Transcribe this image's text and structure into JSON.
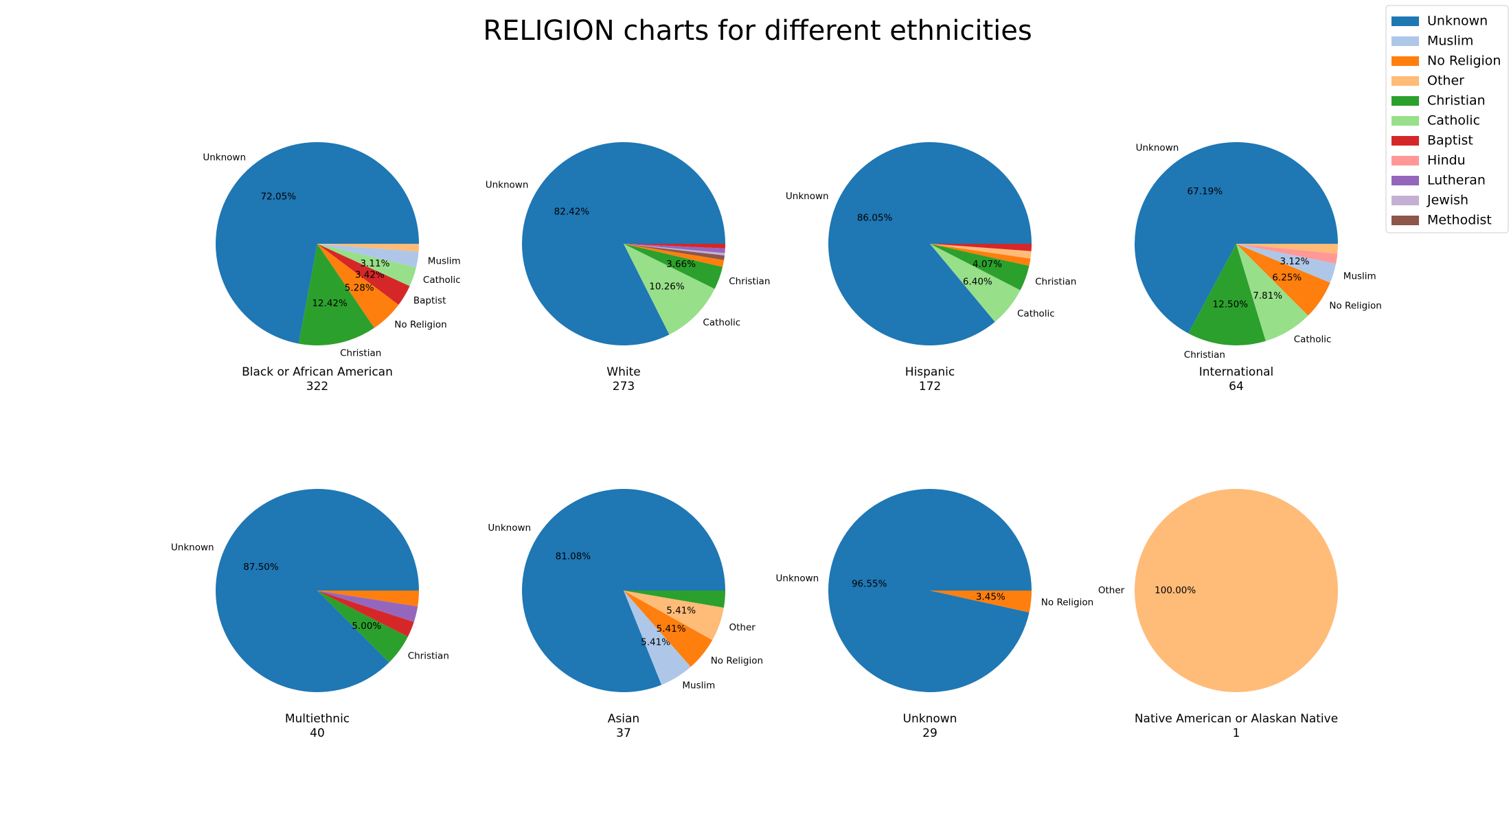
{
  "title": "RELIGION charts for different ethnicities",
  "colors": {
    "Unknown": "#1f77b4",
    "Muslim": "#aec7e8",
    "No Religion": "#ff7f0e",
    "Other": "#ffbb78",
    "Christian": "#2ca02c",
    "Catholic": "#98df8a",
    "Baptist": "#d62728",
    "Hindu": "#ff9896",
    "Lutheran": "#9467bd",
    "Jewish": "#c5b0d5",
    "Methodist": "#8c564b"
  },
  "legend": [
    "Unknown",
    "Muslim",
    "No Religion",
    "Other",
    "Christian",
    "Catholic",
    "Baptist",
    "Hindu",
    "Lutheran",
    "Jewish",
    "Methodist"
  ],
  "chart_data": [
    {
      "type": "pie",
      "caption": "Black or African American",
      "count": "322",
      "slices": [
        {
          "label": "Unknown",
          "value": 232,
          "pct": "72.05%"
        },
        {
          "label": "Christian",
          "value": 40,
          "pct": "12.42%"
        },
        {
          "label": "No Religion",
          "value": 17,
          "pct": "5.28%"
        },
        {
          "label": "Baptist",
          "value": 11,
          "pct": "3.42%"
        },
        {
          "label": "Catholic",
          "value": 10,
          "pct": "3.11%"
        },
        {
          "label": "Muslim",
          "value": 8,
          "pct": "",
          "hideLabel": false
        },
        {
          "label": "Other",
          "value": 4,
          "pct": "",
          "hideLabel": true
        }
      ]
    },
    {
      "type": "pie",
      "caption": "White",
      "count": "273",
      "slices": [
        {
          "label": "Unknown",
          "value": 225,
          "pct": "82.42%"
        },
        {
          "label": "Catholic",
          "value": 28,
          "pct": "10.26%"
        },
        {
          "label": "Christian",
          "value": 10,
          "pct": "3.66%"
        },
        {
          "label": "No Religion",
          "value": 3,
          "pct": "",
          "hideLabel": true
        },
        {
          "label": "Methodist",
          "value": 2,
          "pct": "",
          "hideLabel": true
        },
        {
          "label": "Jewish",
          "value": 1,
          "pct": "",
          "hideLabel": true
        },
        {
          "label": "Lutheran",
          "value": 2,
          "pct": "",
          "hideLabel": true
        },
        {
          "label": "Baptist",
          "value": 2,
          "pct": "",
          "hideLabel": true
        }
      ]
    },
    {
      "type": "pie",
      "caption": "Hispanic",
      "count": "172",
      "slices": [
        {
          "label": "Unknown",
          "value": 148,
          "pct": "86.05%"
        },
        {
          "label": "Catholic",
          "value": 11,
          "pct": "6.40%"
        },
        {
          "label": "Christian",
          "value": 7,
          "pct": "4.07%"
        },
        {
          "label": "No Religion",
          "value": 2,
          "pct": "",
          "hideLabel": true
        },
        {
          "label": "Other",
          "value": 2,
          "pct": "",
          "hideLabel": true
        },
        {
          "label": "Baptist",
          "value": 2,
          "pct": "",
          "hideLabel": true
        }
      ]
    },
    {
      "type": "pie",
      "caption": "International",
      "count": "64",
      "slices": [
        {
          "label": "Unknown",
          "value": 43,
          "pct": "67.19%"
        },
        {
          "label": "Christian",
          "value": 8,
          "pct": "12.50%"
        },
        {
          "label": "Catholic",
          "value": 5,
          "pct": "7.81%"
        },
        {
          "label": "No Religion",
          "value": 4,
          "pct": "6.25%"
        },
        {
          "label": "Muslim",
          "value": 2,
          "pct": "3.12%"
        },
        {
          "label": "Hindu",
          "value": 1,
          "pct": "",
          "hideLabel": true
        },
        {
          "label": "Other",
          "value": 1,
          "pct": "",
          "hideLabel": true
        }
      ]
    },
    {
      "type": "pie",
      "caption": "Multiethnic",
      "count": "40",
      "slices": [
        {
          "label": "Unknown",
          "value": 35,
          "pct": "87.50%"
        },
        {
          "label": "Christian",
          "value": 2,
          "pct": "5.00%"
        },
        {
          "label": "Baptist",
          "value": 1,
          "pct": "",
          "hideLabel": true
        },
        {
          "label": "Lutheran",
          "value": 1,
          "pct": "",
          "hideLabel": true
        },
        {
          "label": "No Religion",
          "value": 1,
          "pct": "",
          "hideLabel": true
        }
      ]
    },
    {
      "type": "pie",
      "caption": "Asian",
      "count": "37",
      "slices": [
        {
          "label": "Unknown",
          "value": 30,
          "pct": "81.08%"
        },
        {
          "label": "Muslim",
          "value": 2,
          "pct": "5.41%"
        },
        {
          "label": "No Religion",
          "value": 2,
          "pct": "5.41%"
        },
        {
          "label": "Other",
          "value": 2,
          "pct": "5.41%"
        },
        {
          "label": "Christian",
          "value": 1,
          "pct": "",
          "hideLabel": true
        }
      ]
    },
    {
      "type": "pie",
      "caption": "Unknown",
      "count": "29",
      "slices": [
        {
          "label": "Unknown",
          "value": 28,
          "pct": "96.55%"
        },
        {
          "label": "No Religion",
          "value": 1,
          "pct": "3.45%"
        }
      ]
    },
    {
      "type": "pie",
      "caption": "Native American or Alaskan Native",
      "count": "1",
      "slices": [
        {
          "label": "Other",
          "value": 1,
          "pct": "100.00%"
        }
      ]
    }
  ]
}
